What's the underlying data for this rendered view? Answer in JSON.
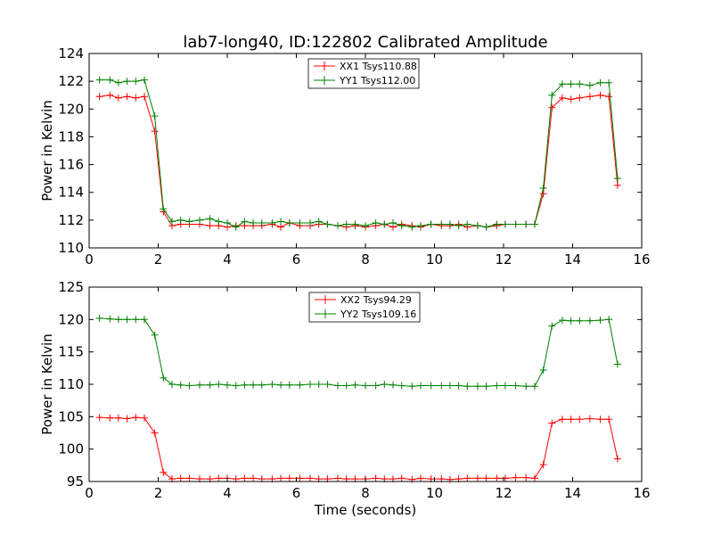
{
  "chart_data": [
    {
      "type": "line",
      "title": "lab7-long40, ID:122802 Calibrated Amplitude",
      "xlabel": "",
      "ylabel": "Power in Kelvin",
      "xlim": [
        0,
        16
      ],
      "ylim": [
        110,
        124
      ],
      "xticks": [
        "0",
        "2",
        "4",
        "6",
        "8",
        "10",
        "12",
        "14",
        "16"
      ],
      "yticks": [
        "110",
        "112",
        "114",
        "116",
        "118",
        "120",
        "122",
        "124"
      ],
      "grid": false,
      "legend_position": "top-center",
      "x": [
        0.3,
        0.6,
        0.85,
        1.1,
        1.35,
        1.6,
        1.9,
        2.15,
        2.4,
        2.65,
        2.9,
        3.2,
        3.5,
        3.75,
        4.0,
        4.25,
        4.5,
        4.75,
        5.0,
        5.3,
        5.55,
        5.8,
        6.1,
        6.4,
        6.65,
        6.9,
        7.2,
        7.45,
        7.7,
        8.0,
        8.3,
        8.55,
        8.8,
        9.05,
        9.35,
        9.6,
        9.9,
        10.2,
        10.45,
        10.7,
        10.95,
        11.25,
        11.5,
        11.8,
        12.05,
        12.35,
        12.65,
        12.9,
        13.15,
        13.4,
        13.7,
        13.95,
        14.2,
        14.5,
        14.8,
        15.05,
        15.3
      ],
      "series": [
        {
          "name": "XX1 Tsys110.88",
          "color": "#ff0000",
          "values": [
            120.9,
            121.0,
            120.8,
            120.9,
            120.8,
            120.9,
            118.4,
            112.6,
            111.6,
            111.7,
            111.7,
            111.7,
            111.6,
            111.6,
            111.5,
            111.6,
            111.6,
            111.6,
            111.6,
            111.7,
            111.5,
            111.8,
            111.6,
            111.6,
            111.7,
            111.7,
            111.6,
            111.5,
            111.6,
            111.5,
            111.6,
            111.7,
            111.5,
            111.7,
            111.6,
            111.5,
            111.7,
            111.6,
            111.6,
            111.7,
            111.5,
            111.6,
            111.5,
            111.6,
            111.7,
            111.7,
            111.7,
            111.7,
            113.9,
            120.1,
            120.8,
            120.7,
            120.8,
            120.9,
            121.0,
            120.9,
            114.5
          ]
        },
        {
          "name": "YY1 Tsys112.00",
          "color": "#008000",
          "values": [
            122.1,
            122.1,
            121.9,
            122.0,
            122.0,
            122.1,
            119.5,
            112.8,
            111.9,
            112.0,
            111.9,
            112.0,
            112.1,
            111.9,
            111.8,
            111.5,
            111.9,
            111.8,
            111.8,
            111.8,
            111.9,
            111.8,
            111.8,
            111.8,
            111.9,
            111.7,
            111.6,
            111.7,
            111.7,
            111.6,
            111.8,
            111.7,
            111.8,
            111.6,
            111.5,
            111.6,
            111.7,
            111.7,
            111.7,
            111.6,
            111.7,
            111.6,
            111.5,
            111.7,
            111.7,
            111.7,
            111.7,
            111.7,
            114.3,
            121.0,
            121.8,
            121.8,
            121.8,
            121.7,
            121.9,
            121.9,
            115.0
          ]
        }
      ]
    },
    {
      "type": "line",
      "title": "",
      "xlabel": "Time (seconds)",
      "ylabel": "Power in Kelvin",
      "xlim": [
        0,
        16
      ],
      "ylim": [
        95,
        125
      ],
      "xticks": [
        "0",
        "2",
        "4",
        "6",
        "8",
        "10",
        "12",
        "14",
        "16"
      ],
      "yticks": [
        "95",
        "100",
        "105",
        "110",
        "115",
        "120",
        "125"
      ],
      "grid": false,
      "legend_position": "top-center",
      "x": [
        0.3,
        0.6,
        0.85,
        1.1,
        1.35,
        1.6,
        1.9,
        2.15,
        2.4,
        2.65,
        2.9,
        3.2,
        3.5,
        3.75,
        4.0,
        4.25,
        4.5,
        4.75,
        5.0,
        5.3,
        5.55,
        5.8,
        6.1,
        6.4,
        6.65,
        6.9,
        7.2,
        7.45,
        7.7,
        8.0,
        8.3,
        8.55,
        8.8,
        9.05,
        9.35,
        9.6,
        9.9,
        10.2,
        10.45,
        10.7,
        10.95,
        11.25,
        11.5,
        11.8,
        12.05,
        12.35,
        12.65,
        12.9,
        13.15,
        13.4,
        13.7,
        13.95,
        14.2,
        14.5,
        14.8,
        15.05,
        15.3
      ],
      "series": [
        {
          "name": "XX2 Tsys94.29",
          "color": "#ff0000",
          "values": [
            104.9,
            104.8,
            104.8,
            104.7,
            104.9,
            104.8,
            102.5,
            96.4,
            95.4,
            95.5,
            95.5,
            95.4,
            95.4,
            95.5,
            95.5,
            95.4,
            95.5,
            95.5,
            95.4,
            95.4,
            95.5,
            95.5,
            95.5,
            95.5,
            95.4,
            95.4,
            95.5,
            95.4,
            95.4,
            95.4,
            95.5,
            95.4,
            95.4,
            95.5,
            95.3,
            95.5,
            95.4,
            95.4,
            95.3,
            95.4,
            95.5,
            95.5,
            95.5,
            95.5,
            95.5,
            95.6,
            95.6,
            95.5,
            97.6,
            104.0,
            104.6,
            104.6,
            104.6,
            104.7,
            104.6,
            104.6,
            98.5
          ]
        },
        {
          "name": "YY2 Tsys109.16",
          "color": "#008000",
          "values": [
            120.2,
            120.1,
            120.0,
            120.0,
            120.0,
            120.0,
            117.6,
            111.0,
            110.0,
            109.9,
            109.8,
            109.9,
            109.9,
            110.0,
            109.9,
            109.8,
            109.9,
            109.9,
            109.9,
            110.0,
            109.9,
            109.9,
            109.9,
            110.0,
            110.0,
            110.0,
            109.8,
            109.8,
            109.9,
            109.8,
            109.8,
            110.0,
            109.9,
            109.8,
            109.7,
            109.8,
            109.8,
            109.8,
            109.8,
            109.8,
            109.7,
            109.7,
            109.7,
            109.8,
            109.8,
            109.8,
            109.7,
            109.7,
            112.2,
            119.0,
            119.9,
            119.8,
            119.8,
            119.8,
            119.9,
            120.0,
            113.1
          ]
        }
      ]
    }
  ]
}
